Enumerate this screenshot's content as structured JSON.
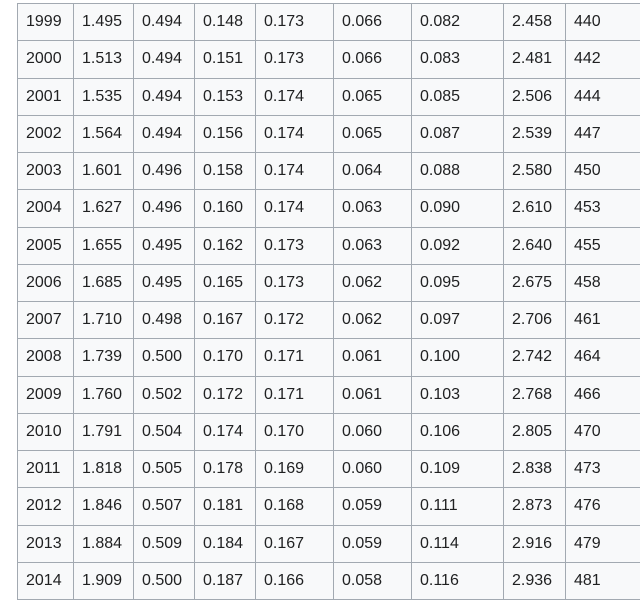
{
  "table": {
    "rows": [
      [
        "1999",
        "1.495",
        "0.494",
        "0.148",
        "0.173",
        "0.066",
        "0.082",
        "2.458",
        "440"
      ],
      [
        "2000",
        "1.513",
        "0.494",
        "0.151",
        "0.173",
        "0.066",
        "0.083",
        "2.481",
        "442"
      ],
      [
        "2001",
        "1.535",
        "0.494",
        "0.153",
        "0.174",
        "0.065",
        "0.085",
        "2.506",
        "444"
      ],
      [
        "2002",
        "1.564",
        "0.494",
        "0.156",
        "0.174",
        "0.065",
        "0.087",
        "2.539",
        "447"
      ],
      [
        "2003",
        "1.601",
        "0.496",
        "0.158",
        "0.174",
        "0.064",
        "0.088",
        "2.580",
        "450"
      ],
      [
        "2004",
        "1.627",
        "0.496",
        "0.160",
        "0.174",
        "0.063",
        "0.090",
        "2.610",
        "453"
      ],
      [
        "2005",
        "1.655",
        "0.495",
        "0.162",
        "0.173",
        "0.063",
        "0.092",
        "2.640",
        "455"
      ],
      [
        "2006",
        "1.685",
        "0.495",
        "0.165",
        "0.173",
        "0.062",
        "0.095",
        "2.675",
        "458"
      ],
      [
        "2007",
        "1.710",
        "0.498",
        "0.167",
        "0.172",
        "0.062",
        "0.097",
        "2.706",
        "461"
      ],
      [
        "2008",
        "1.739",
        "0.500",
        "0.170",
        "0.171",
        "0.061",
        "0.100",
        "2.742",
        "464"
      ],
      [
        "2009",
        "1.760",
        "0.502",
        "0.172",
        "0.171",
        "0.061",
        "0.103",
        "2.768",
        "466"
      ],
      [
        "2010",
        "1.791",
        "0.504",
        "0.174",
        "0.170",
        "0.060",
        "0.106",
        "2.805",
        "470"
      ],
      [
        "2011",
        "1.818",
        "0.505",
        "0.178",
        "0.169",
        "0.060",
        "0.109",
        "2.838",
        "473"
      ],
      [
        "2012",
        "1.846",
        "0.507",
        "0.181",
        "0.168",
        "0.059",
        "0.111",
        "2.873",
        "476"
      ],
      [
        "2013",
        "1.884",
        "0.509",
        "0.184",
        "0.167",
        "0.059",
        "0.114",
        "2.916",
        "479"
      ],
      [
        "2014",
        "1.909",
        "0.500",
        "0.187",
        "0.166",
        "0.058",
        "0.116",
        "2.936",
        "481"
      ]
    ]
  }
}
